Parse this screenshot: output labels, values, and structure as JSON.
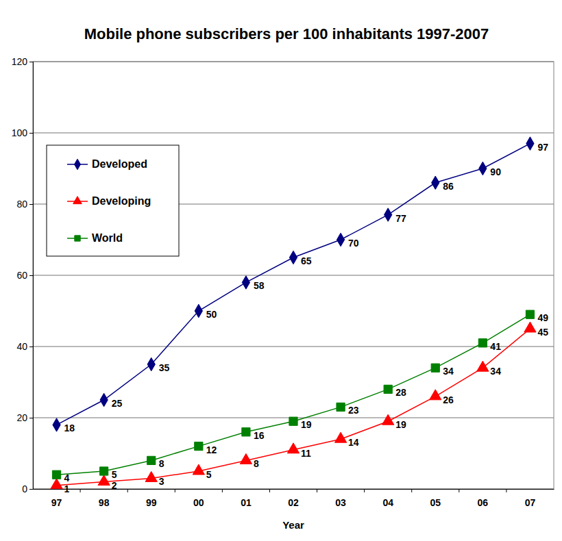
{
  "chart_data": {
    "type": "line",
    "title": "Mobile phone subscribers per 100 inhabitants 1997-2007",
    "x_label": "Year",
    "categories": [
      "97",
      "98",
      "99",
      "00",
      "01",
      "02",
      "03",
      "04",
      "05",
      "06",
      "07"
    ],
    "series": [
      {
        "name": "Developed",
        "color": "#000080",
        "marker": "diamond",
        "values": [
          18,
          25,
          35,
          50,
          58,
          65,
          70,
          77,
          86,
          90,
          97
        ]
      },
      {
        "name": "Developing",
        "color": "#ff0000",
        "marker": "triangle",
        "values": [
          1,
          2,
          3,
          5,
          8,
          11,
          14,
          19,
          26,
          34,
          45
        ]
      },
      {
        "name": "World",
        "color": "#008000",
        "marker": "square",
        "values": [
          4,
          5,
          8,
          12,
          16,
          19,
          23,
          28,
          34,
          41,
          49
        ]
      }
    ],
    "ylim": [
      0,
      120
    ],
    "yticks": [
      0,
      20,
      40,
      60,
      80,
      100,
      120
    ],
    "grid": true,
    "legend": "upper left",
    "data_labels": true
  }
}
